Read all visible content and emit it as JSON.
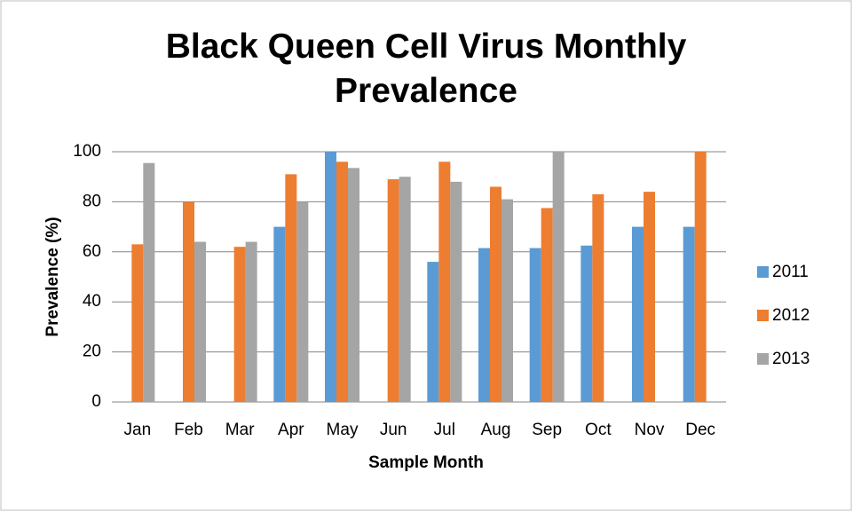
{
  "chart_data": {
    "type": "bar",
    "title": "Black Queen Cell Virus Monthly Prevalence",
    "x_label": "Sample Month",
    "y_label": "Prevalence (%)",
    "categories": [
      "Jan",
      "Feb",
      "Mar",
      "Apr",
      "May",
      "Jun",
      "Jul",
      "Aug",
      "Sep",
      "Oct",
      "Nov",
      "Dec"
    ],
    "series": [
      {
        "name": "2011",
        "color": "#5b9bd5",
        "values": [
          null,
          null,
          null,
          70,
          100,
          null,
          56,
          61.5,
          61.5,
          62.5,
          70,
          70
        ]
      },
      {
        "name": "2012",
        "color": "#ed7d31",
        "values": [
          63,
          80,
          62,
          91,
          96,
          89,
          96,
          86,
          77.5,
          83,
          84,
          100
        ]
      },
      {
        "name": "2013",
        "color": "#a5a5a5",
        "values": [
          95.5,
          64,
          64,
          80,
          93.5,
          90,
          88,
          81,
          100,
          null,
          null,
          null
        ]
      }
    ],
    "ylim": [
      0,
      100
    ],
    "yticks": [
      0,
      20,
      40,
      60,
      80,
      100
    ],
    "grid": true,
    "legend": "right"
  }
}
